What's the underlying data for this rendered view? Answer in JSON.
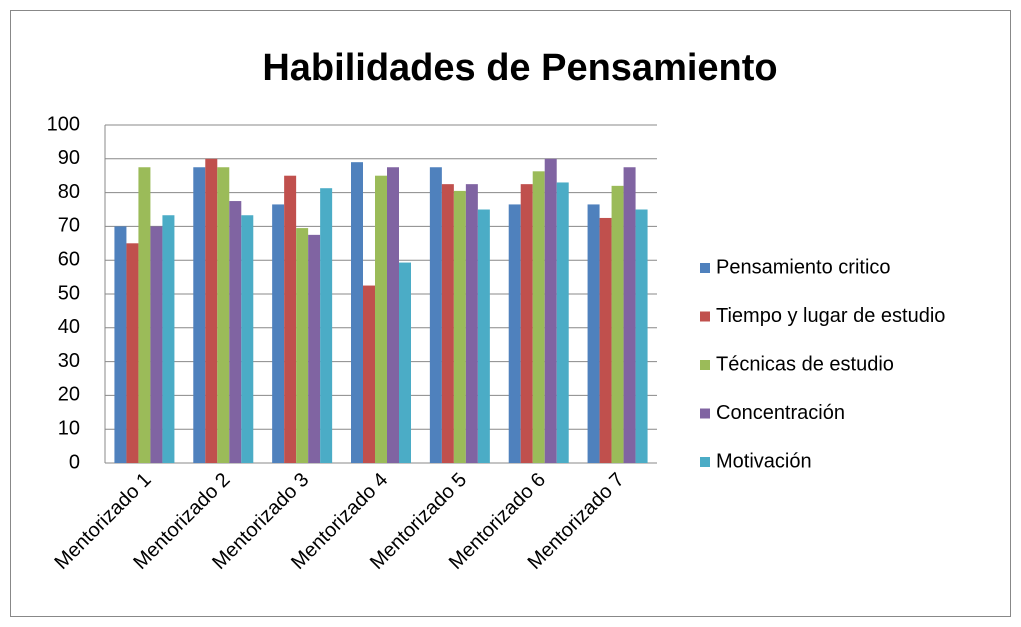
{
  "chart_data": {
    "type": "bar",
    "title": "Habilidades de Pensamiento",
    "categories": [
      "Mentorizado 1",
      "Mentorizado 2",
      "Mentorizado 3",
      "Mentorizado 4",
      "Mentorizado 5",
      "Mentorizado 6",
      "Mentorizado 7"
    ],
    "series": [
      {
        "name": "Pensamiento critico",
        "color": "#4f81bd",
        "values": [
          70,
          87.5,
          76.5,
          89,
          87.5,
          76.5,
          76.5
        ]
      },
      {
        "name": "Tiempo y lugar de estudio",
        "color": "#c0504d",
        "values": [
          65,
          90,
          85,
          52.5,
          82.5,
          82.5,
          72.5
        ]
      },
      {
        "name": "Técnicas de estudio",
        "color": "#9bbb59",
        "values": [
          87.5,
          87.5,
          69.5,
          85,
          80.5,
          86.3,
          82
        ]
      },
      {
        "name": "Concentración",
        "color": "#8064a2",
        "values": [
          70,
          77.5,
          67.5,
          87.5,
          82.5,
          90,
          87.5
        ]
      },
      {
        "name": "Motivación",
        "color": "#4bacc6",
        "values": [
          73.3,
          73.3,
          81.3,
          59.3,
          75,
          83,
          75
        ]
      }
    ],
    "ylim": [
      0,
      100
    ],
    "yticks": [
      0,
      10,
      20,
      30,
      40,
      50,
      60,
      70,
      80,
      90,
      100
    ],
    "grid": true,
    "legend": "right"
  }
}
